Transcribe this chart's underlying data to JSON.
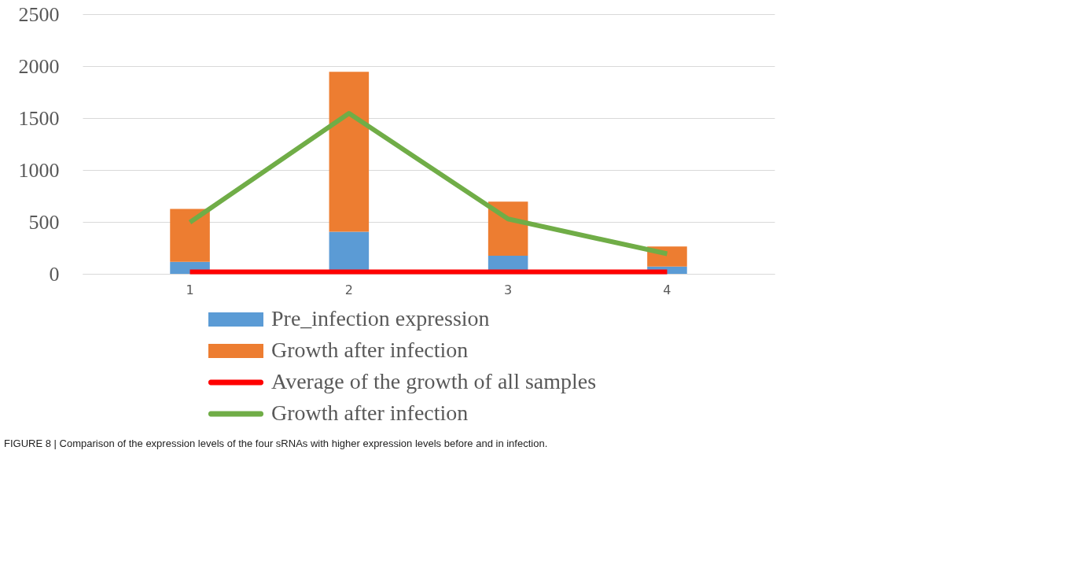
{
  "chart_data": {
    "type": "bar",
    "stacked": true,
    "categories": [
      "1",
      "2",
      "3",
      "4"
    ],
    "series": [
      {
        "name": "Pre_infection expression",
        "color": "#5b9bd5",
        "values": [
          116,
          406,
          174,
          71
        ]
      },
      {
        "name": "Growth after infection",
        "color": "#ed7d31",
        "values": [
          509,
          1540,
          522,
          193
        ]
      },
      {
        "name": "Average of the growth of all samples",
        "type": "line",
        "color": "#ff0000",
        "values": [
          18,
          18,
          18,
          18
        ]
      },
      {
        "name": "Growth after infection",
        "type": "line",
        "color": "#70ad47",
        "values": [
          496,
          1546,
          528,
          193
        ]
      }
    ],
    "ylim": [
      0,
      2500
    ],
    "yticks": [
      0,
      500,
      1000,
      1500,
      2000,
      2500
    ],
    "grid": "y",
    "legend": "bottom",
    "annotations": [
      "FIGURE 8 | Comparison of the expression levels of the four sRNAs with higher expression levels before and in infection."
    ]
  }
}
